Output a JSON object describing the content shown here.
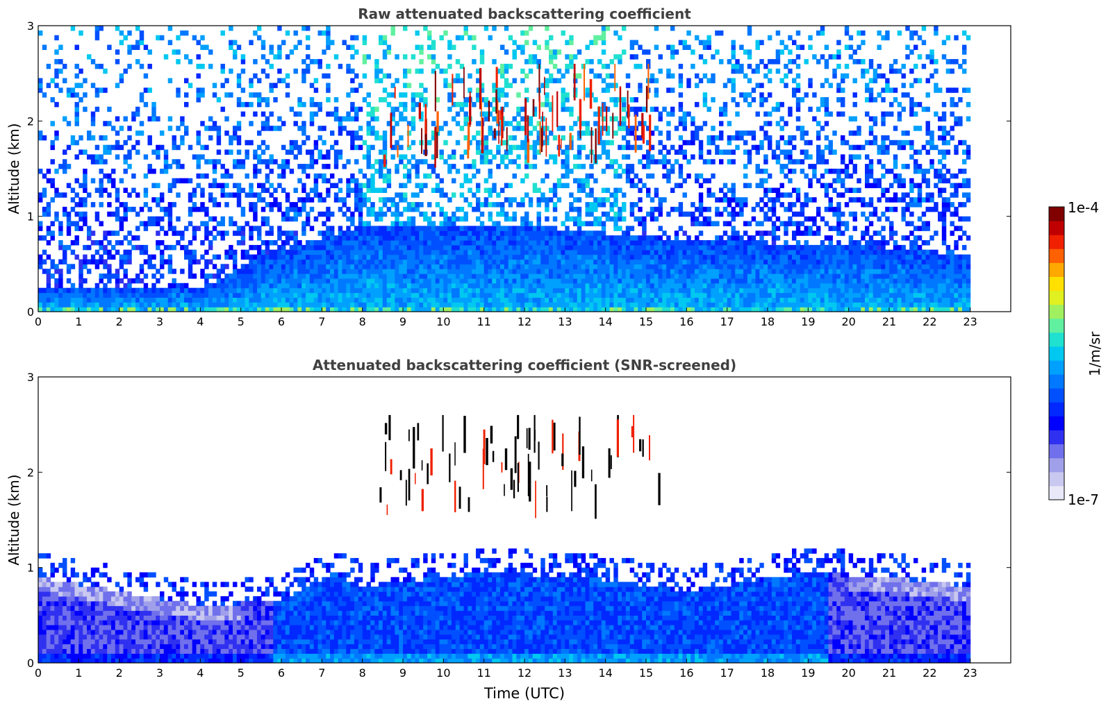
{
  "chart_data": [
    {
      "type": "heatmap",
      "title": "Raw attenuated backscattering coefficient",
      "xlabel": "",
      "ylabel": "Altitude (km)",
      "xlim": [
        0,
        24
      ],
      "ylim": [
        0,
        3
      ],
      "xticks": [
        "0",
        "1",
        "2",
        "3",
        "4",
        "5",
        "6",
        "7",
        "8",
        "9",
        "10",
        "11",
        "12",
        "13",
        "14",
        "15",
        "16",
        "17",
        "18",
        "19",
        "20",
        "21",
        "22",
        "23"
      ],
      "yticks": [
        "0",
        "1",
        "2",
        "3"
      ],
      "data_time_range": [
        0,
        23
      ],
      "grid": false,
      "features": [
        {
          "kind": "boundary_layer",
          "time": [
            0,
            4,
            6,
            8,
            12,
            16,
            20,
            23
          ],
          "top_km": [
            0.25,
            0.25,
            0.65,
            0.9,
            0.9,
            0.75,
            0.7,
            0.6
          ]
        },
        {
          "kind": "cloud_streaks",
          "time_range": [
            8.4,
            15.3
          ],
          "altitude_range_km": [
            1.5,
            2.6
          ]
        }
      ]
    },
    {
      "type": "heatmap",
      "title": "Attenuated backscattering coefficient (SNR-screened)",
      "xlabel": "Time (UTC)",
      "ylabel": "Altitude (km)",
      "xlim": [
        0,
        24
      ],
      "ylim": [
        0,
        3
      ],
      "xticks": [
        "0",
        "1",
        "2",
        "3",
        "4",
        "5",
        "6",
        "7",
        "8",
        "9",
        "10",
        "11",
        "12",
        "13",
        "14",
        "15",
        "16",
        "17",
        "18",
        "19",
        "20",
        "21",
        "22",
        "23"
      ],
      "yticks": [
        "0",
        "1",
        "2",
        "3"
      ],
      "data_time_range": [
        0,
        23
      ],
      "grid": false,
      "features": [
        {
          "kind": "screened_layer",
          "time": [
            0,
            4,
            5.9,
            7.3,
            8,
            11,
            13.5,
            16,
            19,
            21,
            23
          ],
          "top_km": [
            0.9,
            0.6,
            0.65,
            0.95,
            0.8,
            0.95,
            0.9,
            0.75,
            0.95,
            0.9,
            0.8
          ]
        },
        {
          "kind": "cloud_streaks",
          "time_range": [
            8.4,
            15.3
          ],
          "altitude_range_km": [
            1.5,
            2.6
          ]
        }
      ]
    }
  ],
  "colorbar": {
    "label": "1/m/sr",
    "max_label": "1e-4",
    "min_label": "1e-7",
    "colors": [
      "#e8e8f8",
      "#c8c8f0",
      "#a0a0ea",
      "#7070ec",
      "#3030f0",
      "#0000ff",
      "#0028ff",
      "#0050ff",
      "#0078ff",
      "#00a0ff",
      "#00c8f0",
      "#20e0d0",
      "#60f0a0",
      "#a0f060",
      "#e0f020",
      "#ffe000",
      "#ffa800",
      "#ff6000",
      "#f02000",
      "#c00000",
      "#800000"
    ]
  }
}
